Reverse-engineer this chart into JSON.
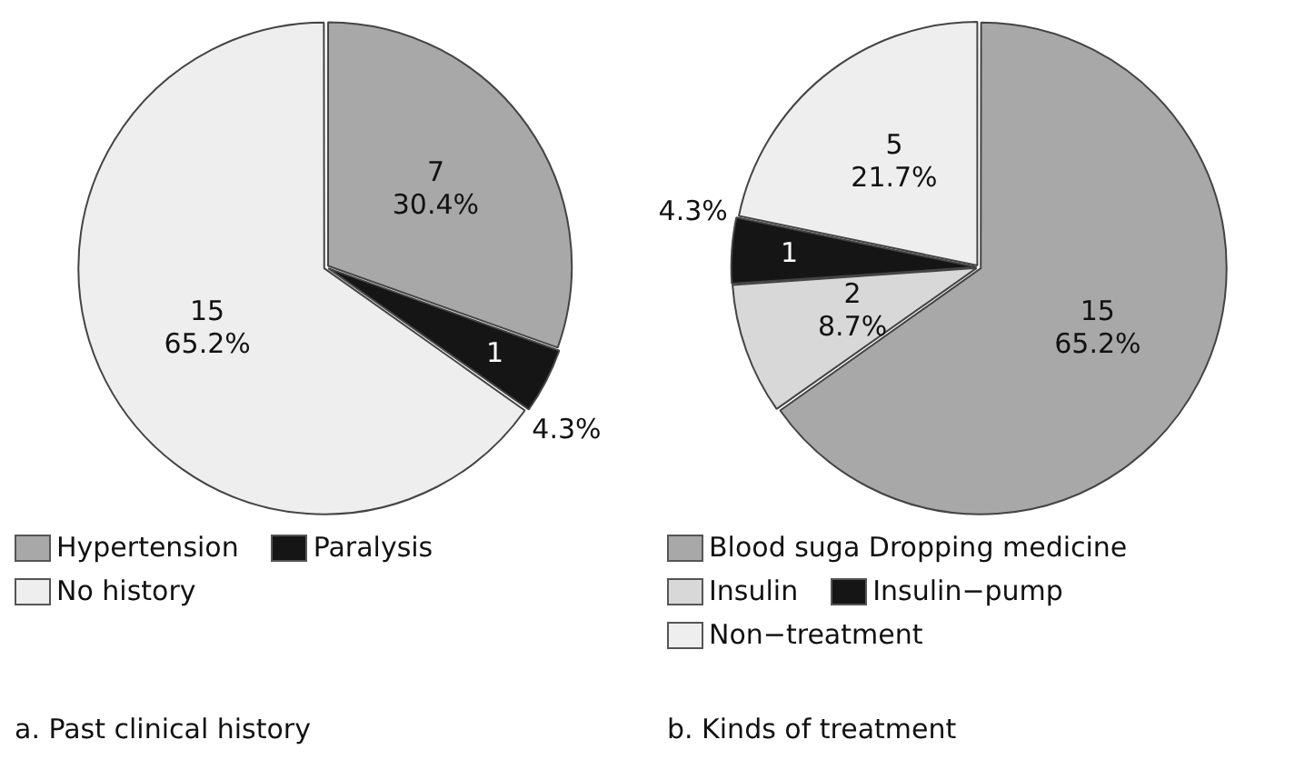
{
  "chart_data": [
    {
      "type": "pie",
      "title": "a. Past clinical history",
      "categories": [
        "Hypertension",
        "Paralysis",
        "No history"
      ],
      "values": [
        7,
        1,
        15
      ],
      "colors": [
        "#a8a8a8",
        "#151515",
        "#eeeeee"
      ],
      "value_labels": [
        "7\n30.4%",
        "1\n4.3%",
        "15\n65.2%"
      ],
      "legend": "bottom"
    },
    {
      "type": "pie",
      "title": "b. Kinds of treatment",
      "categories": [
        "Blood suga Dropping medicine",
        "Insulin",
        "Insulin−pump",
        "Non−treatment"
      ],
      "values": [
        15,
        2,
        1,
        5
      ],
      "colors": [
        "#a8a8a8",
        "#d8d8d8",
        "#151515",
        "#eeeeee"
      ],
      "value_labels": [
        "15\n65.2%",
        "2\n8.7%",
        "1\n4.3%",
        "5\n21.7%"
      ],
      "legend": "bottom"
    }
  ]
}
